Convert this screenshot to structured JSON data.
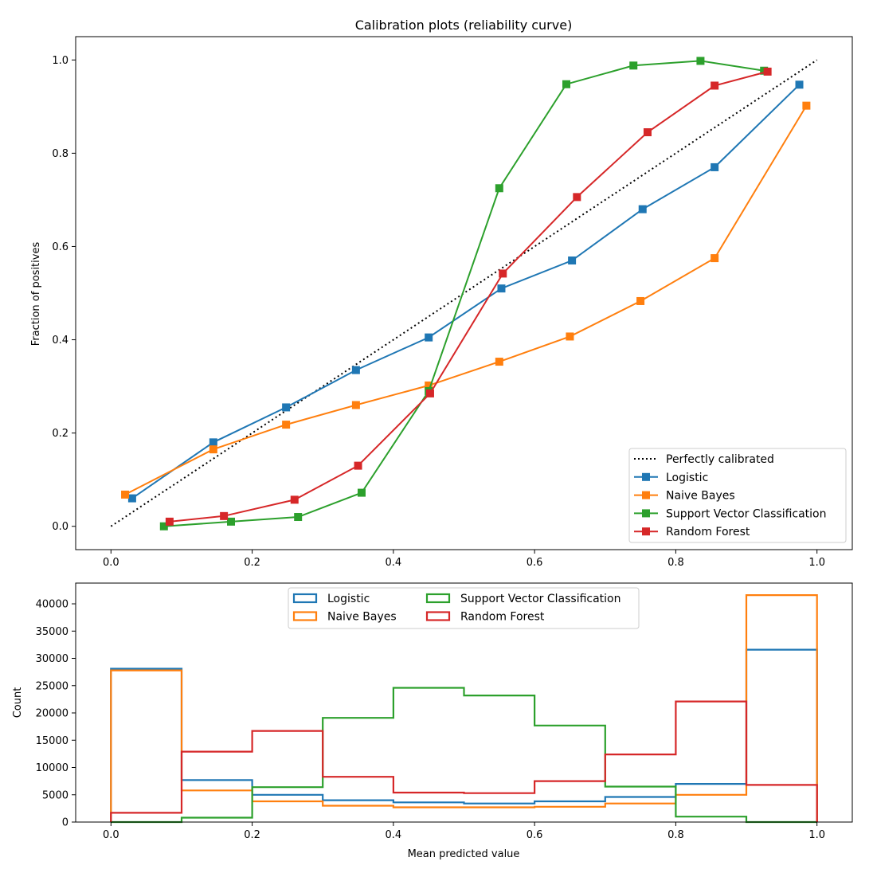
{
  "chart_data": [
    {
      "type": "line",
      "title": "Calibration plots  (reliability curve)",
      "xlabel": "",
      "ylabel": "Fraction of positives",
      "xlim": [
        -0.05,
        1.05
      ],
      "ylim": [
        -0.05,
        1.05
      ],
      "xticks": [
        "0.0",
        "0.2",
        "0.4",
        "0.6",
        "0.8",
        "1.0"
      ],
      "yticks": [
        "0.0",
        "0.2",
        "0.4",
        "0.6",
        "0.8",
        "1.0"
      ],
      "grid": false,
      "legend": "lower-right",
      "reference": {
        "name": "Perfectly calibrated",
        "color": "#000000",
        "style": "dotted",
        "x": [
          0,
          1
        ],
        "y": [
          0,
          1
        ]
      },
      "series": [
        {
          "name": "Logistic",
          "color": "#1f77b4",
          "marker": "square",
          "x": [
            0.03,
            0.145,
            0.248,
            0.347,
            0.45,
            0.553,
            0.653,
            0.753,
            0.855,
            0.975
          ],
          "y": [
            0.06,
            0.18,
            0.255,
            0.335,
            0.405,
            0.51,
            0.57,
            0.68,
            0.77,
            0.947
          ]
        },
        {
          "name": "Naive Bayes",
          "color": "#ff7f0e",
          "marker": "square",
          "x": [
            0.02,
            0.145,
            0.248,
            0.347,
            0.45,
            0.55,
            0.65,
            0.75,
            0.855,
            0.985
          ],
          "y": [
            0.068,
            0.165,
            0.218,
            0.26,
            0.302,
            0.353,
            0.407,
            0.483,
            0.575,
            0.902
          ]
        },
        {
          "name": "Support Vector Classification",
          "color": "#2ca02c",
          "marker": "square",
          "x": [
            0.075,
            0.17,
            0.265,
            0.355,
            0.45,
            0.55,
            0.645,
            0.74,
            0.835,
            0.925
          ],
          "y": [
            0.0,
            0.01,
            0.02,
            0.072,
            0.29,
            0.725,
            0.948,
            0.988,
            0.998,
            0.977
          ]
        },
        {
          "name": "Random Forest",
          "color": "#d62728",
          "marker": "square",
          "x": [
            0.083,
            0.16,
            0.26,
            0.35,
            0.452,
            0.555,
            0.66,
            0.76,
            0.855,
            0.93
          ],
          "y": [
            0.01,
            0.022,
            0.057,
            0.13,
            0.285,
            0.542,
            0.706,
            0.845,
            0.945,
            0.975
          ]
        }
      ]
    },
    {
      "type": "histogram",
      "xlabel": "Mean predicted value",
      "ylabel": "Count",
      "xlim": [
        -0.05,
        1.05
      ],
      "ylim": [
        0,
        43800
      ],
      "xticks": [
        "0.0",
        "0.2",
        "0.4",
        "0.6",
        "0.8",
        "1.0"
      ],
      "yticks": [
        "0",
        "5000",
        "10000",
        "15000",
        "20000",
        "25000",
        "30000",
        "35000",
        "40000"
      ],
      "grid": false,
      "legend": "upper-center",
      "bin_edges": [
        0,
        0.1,
        0.2,
        0.3,
        0.4,
        0.5,
        0.6,
        0.7,
        0.8,
        0.9,
        1.0
      ],
      "series": [
        {
          "name": "Logistic",
          "color": "#1f77b4",
          "values": [
            28100,
            7700,
            5000,
            4000,
            3600,
            3400,
            3800,
            4600,
            7000,
            31600
          ]
        },
        {
          "name": "Naive Bayes",
          "color": "#ff7f0e",
          "values": [
            27800,
            5800,
            3800,
            3000,
            2700,
            2700,
            2800,
            3400,
            5000,
            41600
          ]
        },
        {
          "name": "Support Vector Classification",
          "color": "#2ca02c",
          "values": [
            0,
            800,
            6400,
            19100,
            24600,
            23200,
            17700,
            6500,
            1000,
            0
          ]
        },
        {
          "name": "Random Forest",
          "color": "#d62728",
          "values": [
            1700,
            12900,
            16700,
            8300,
            5400,
            5300,
            7500,
            12400,
            22100,
            6800
          ]
        }
      ]
    }
  ]
}
